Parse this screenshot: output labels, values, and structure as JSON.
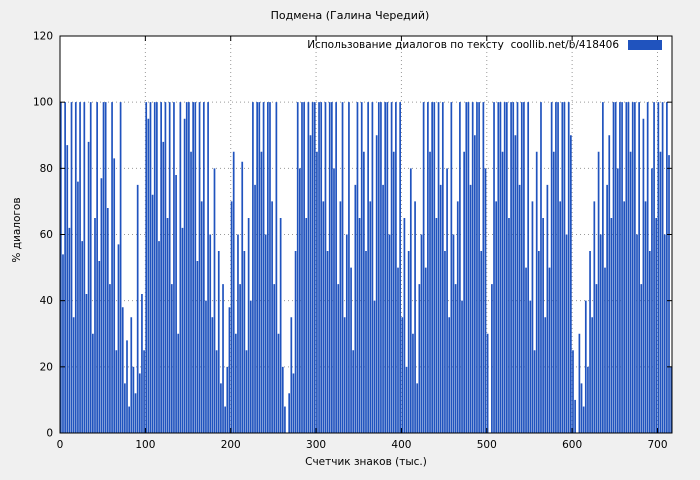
{
  "window": {
    "background": "#f0f0f0"
  },
  "chart_data": {
    "type": "bar",
    "title": "Подмена (Галина Чередий)",
    "legend": "Использование диалогов по тексту  coollib.net/b/418406",
    "xlabel": "Счетчик знаков (тыс.)",
    "ylabel": "% диалогов",
    "xlim": [
      0,
      717
    ],
    "ylim": [
      0,
      120
    ],
    "xticks": [
      0,
      100,
      200,
      300,
      400,
      500,
      600,
      700
    ],
    "yticks": [
      0,
      20,
      40,
      60,
      80,
      100,
      120
    ],
    "grid": true,
    "legend_position": "top-right-inside",
    "bar_color": "#2053be",
    "x_start": 1,
    "x_step": 2.5,
    "values": [
      100,
      54,
      100,
      87,
      62,
      100,
      35,
      100,
      76,
      100,
      58,
      100,
      42,
      88,
      100,
      30,
      65,
      100,
      52,
      77,
      100,
      100,
      68,
      45,
      100,
      83,
      25,
      57,
      100,
      38,
      15,
      28,
      8,
      35,
      20,
      12,
      75,
      18,
      42,
      25,
      100,
      95,
      100,
      72,
      100,
      100,
      58,
      100,
      88,
      100,
      65,
      100,
      45,
      100,
      78,
      30,
      100,
      62,
      95,
      100,
      100,
      85,
      100,
      100,
      52,
      100,
      70,
      100,
      40,
      100,
      60,
      35,
      80,
      25,
      55,
      15,
      45,
      8,
      20,
      38,
      70,
      85,
      30,
      60,
      45,
      82,
      55,
      25,
      65,
      40,
      100,
      75,
      100,
      100,
      85,
      100,
      60,
      100,
      100,
      70,
      45,
      100,
      30,
      65,
      20,
      8,
      0,
      12,
      35,
      18,
      55,
      100,
      80,
      100,
      100,
      65,
      100,
      90,
      100,
      100,
      85,
      100,
      100,
      70,
      100,
      55,
      100,
      100,
      80,
      100,
      45,
      70,
      100,
      35,
      60,
      100,
      50,
      25,
      75,
      100,
      65,
      100,
      85,
      55,
      100,
      70,
      100,
      40,
      90,
      100,
      100,
      75,
      100,
      100,
      60,
      100,
      85,
      100,
      50,
      100,
      35,
      65,
      20,
      55,
      80,
      30,
      70,
      15,
      45,
      60,
      100,
      50,
      100,
      85,
      100,
      100,
      65,
      100,
      75,
      100,
      55,
      80,
      35,
      100,
      60,
      45,
      70,
      100,
      40,
      85,
      100,
      100,
      75,
      100,
      90,
      100,
      100,
      55,
      100,
      80,
      30,
      0,
      45,
      100,
      70,
      100,
      100,
      85,
      100,
      100,
      65,
      100,
      100,
      90,
      100,
      75,
      100,
      100,
      50,
      100,
      40,
      70,
      25,
      85,
      55,
      100,
      65,
      35,
      75,
      50,
      100,
      85,
      100,
      100,
      70,
      100,
      100,
      60,
      100,
      90,
      25,
      10,
      0,
      30,
      15,
      8,
      40,
      20,
      55,
      35,
      70,
      45,
      85,
      60,
      100,
      50,
      75,
      90,
      65,
      100,
      100,
      80,
      100,
      100,
      70,
      100,
      100,
      85,
      100,
      100,
      60,
      100,
      45,
      95,
      70,
      100,
      55,
      80,
      100,
      65,
      100,
      85,
      100,
      60,
      100,
      84,
      20
    ]
  }
}
